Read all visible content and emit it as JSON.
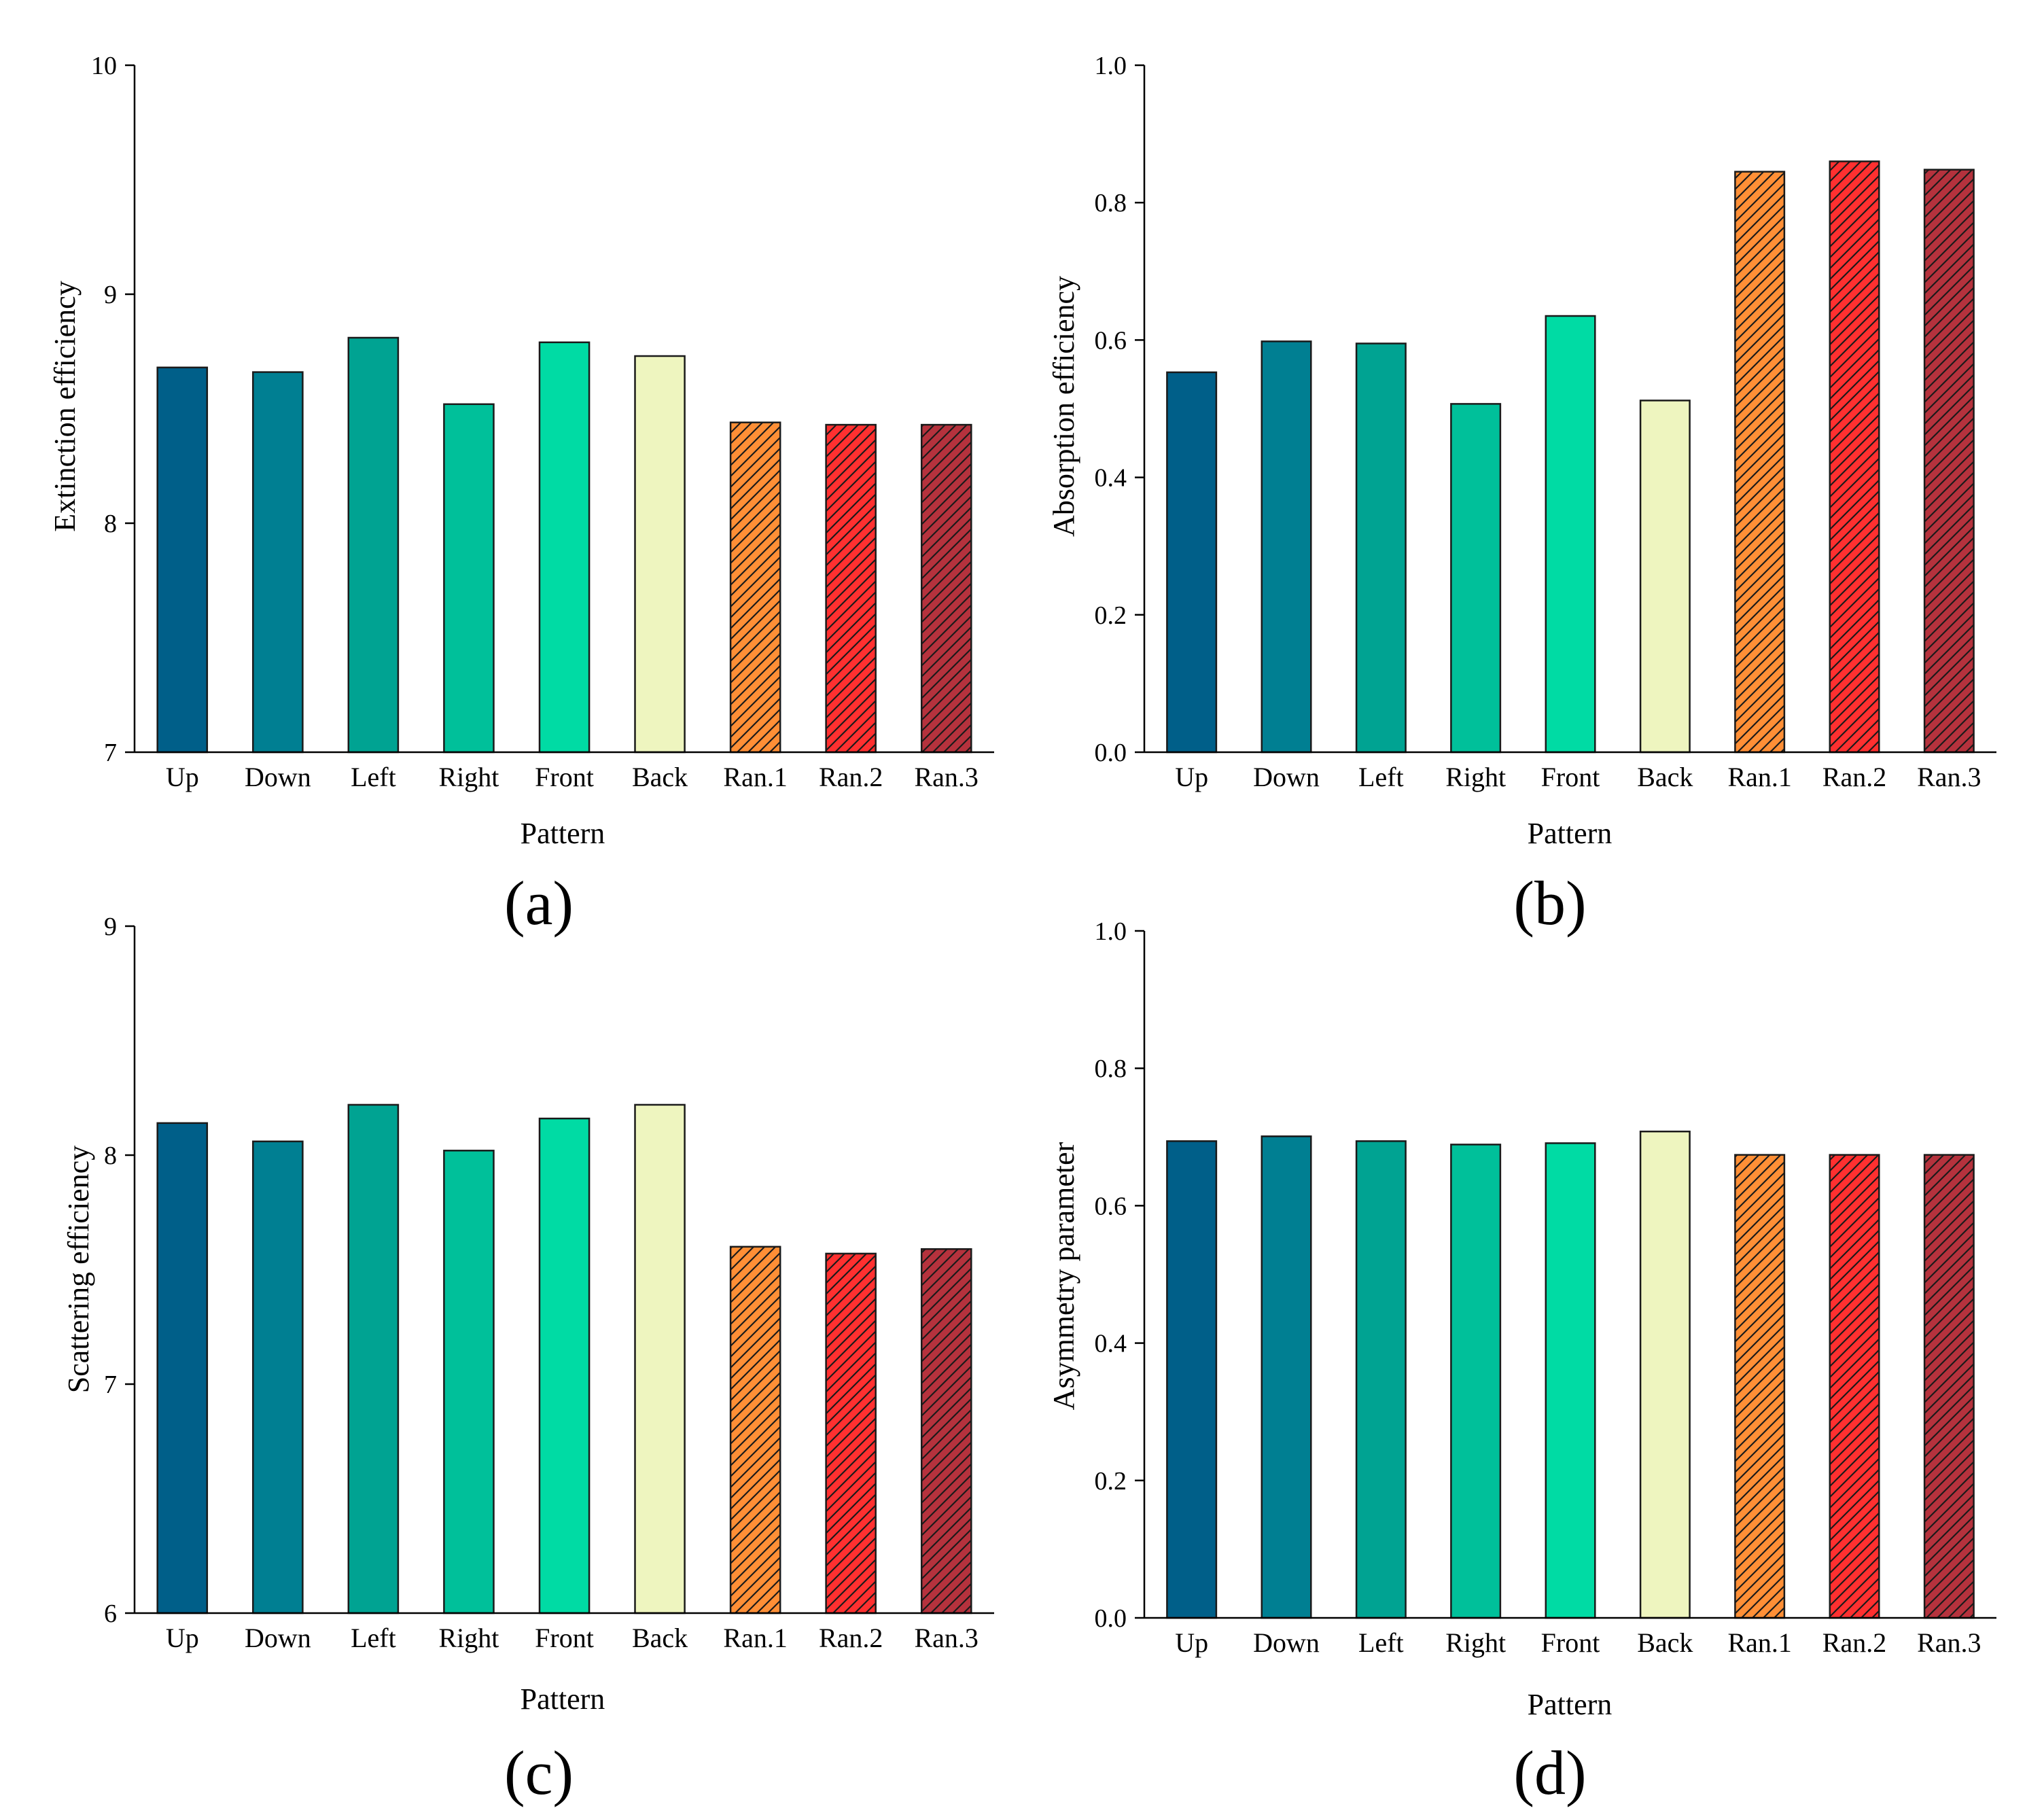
{
  "figure": {
    "panel_labels": [
      "(a)",
      "(b)",
      "(c)",
      "(d)"
    ]
  },
  "bar_style": {
    "fills": [
      "#005f89",
      "#007f92",
      "#00a392",
      "#00c09a",
      "#00dba4",
      "#eef5bf",
      "#ff8f36",
      "#ff3030",
      "#b5323d"
    ],
    "hatched": [
      false,
      false,
      false,
      false,
      false,
      false,
      true,
      true,
      true
    ]
  },
  "chart_data": [
    {
      "type": "bar",
      "panel": "(a)",
      "title": "",
      "xlabel": "Pattern",
      "ylabel": "Extinction efficiency",
      "categories": [
        "Up",
        "Down",
        "Left",
        "Right",
        "Front",
        "Back",
        "Ran.1",
        "Ran.2",
        "Ran.3"
      ],
      "values": [
        8.68,
        8.66,
        8.81,
        8.52,
        8.79,
        8.73,
        8.44,
        8.43,
        8.43
      ],
      "ylim": [
        7,
        10
      ],
      "yticks": [
        "7",
        "8",
        "9",
        "10"
      ]
    },
    {
      "type": "bar",
      "panel": "(b)",
      "title": "",
      "xlabel": "Pattern",
      "ylabel": "Absorption efficiency",
      "categories": [
        "Up",
        "Down",
        "Left",
        "Right",
        "Front",
        "Back",
        "Ran.1",
        "Ran.2",
        "Ran.3"
      ],
      "values": [
        0.553,
        0.598,
        0.595,
        0.507,
        0.635,
        0.512,
        0.845,
        0.86,
        0.848
      ],
      "ylim": [
        0,
        1.0
      ],
      "yticks": [
        "0.0",
        "0.2",
        "0.4",
        "0.6",
        "0.8",
        "1.0"
      ]
    },
    {
      "type": "bar",
      "panel": "(c)",
      "title": "",
      "xlabel": "Pattern",
      "ylabel": "Scattering efficiency",
      "categories": [
        "Up",
        "Down",
        "Left",
        "Right",
        "Front",
        "Back",
        "Ran.1",
        "Ran.2",
        "Ran.3"
      ],
      "values": [
        8.14,
        8.06,
        8.22,
        8.02,
        8.16,
        8.22,
        7.6,
        7.57,
        7.59
      ],
      "ylim": [
        6,
        9
      ],
      "yticks": [
        "6",
        "7",
        "8",
        "9"
      ]
    },
    {
      "type": "bar",
      "panel": "(d)",
      "title": "",
      "xlabel": "Pattern",
      "ylabel": "Asymmetry parameter",
      "categories": [
        "Up",
        "Down",
        "Left",
        "Right",
        "Front",
        "Back",
        "Ran.1",
        "Ran.2",
        "Ran.3"
      ],
      "values": [
        0.694,
        0.701,
        0.694,
        0.689,
        0.691,
        0.708,
        0.674,
        0.674,
        0.674
      ],
      "ylim": [
        0,
        1.0
      ],
      "yticks": [
        "0.0",
        "0.2",
        "0.4",
        "0.6",
        "0.8",
        "1.0"
      ]
    }
  ]
}
